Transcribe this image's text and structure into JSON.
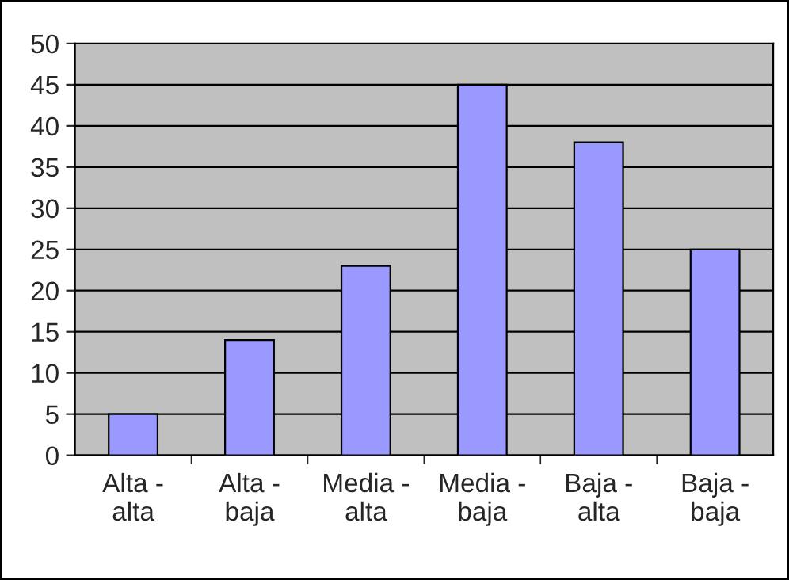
{
  "chart_data": {
    "type": "bar",
    "categories": [
      "Alta -\nalta",
      "Alta -\nbaja",
      "Media -\nalta",
      "Media -\nbaja",
      "Baja -\nalta",
      "Baja -\nbaja"
    ],
    "values": [
      5,
      14,
      23,
      45,
      38,
      25
    ],
    "color": "#9999ff",
    "ylim": [
      0,
      50
    ],
    "yticks": [
      0,
      5,
      10,
      15,
      20,
      25,
      30,
      35,
      40,
      45,
      50
    ],
    "grid": "y",
    "legend": false
  }
}
